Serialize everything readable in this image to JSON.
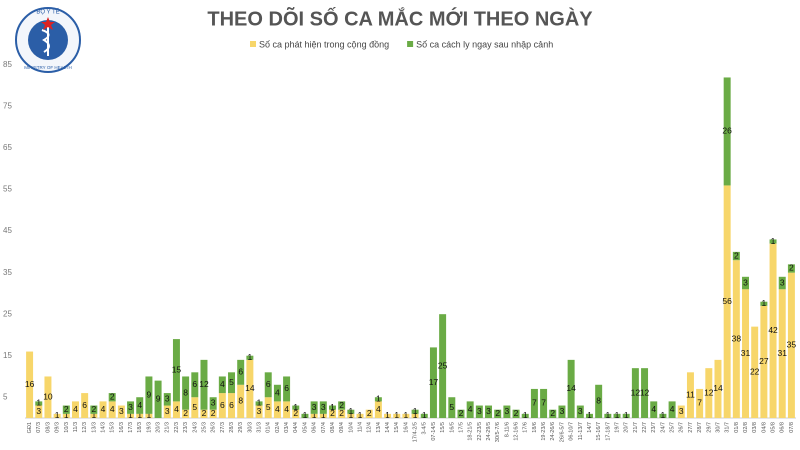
{
  "logo": {
    "top": "BỘ Y TẾ",
    "bottom": "MINISTRY OF HEALTH"
  },
  "chart_data": {
    "type": "stacked_bar",
    "title": "THEO DÕI SỐ CA MẮC MỚI THEO NGÀY",
    "categories": [
      "GĐ1",
      "07/3",
      "08/3",
      "09/3",
      "10/3",
      "11/3",
      "12/3",
      "13/3",
      "14/3",
      "15/3",
      "16/3",
      "17/3",
      "18/3",
      "19/3",
      "20/3",
      "21/3",
      "22/3",
      "23/3",
      "24/3",
      "25/3",
      "26/3",
      "27/3",
      "28/3",
      "29/3",
      "30/3",
      "31/3",
      "01/4",
      "02/4",
      "03/4",
      "04/4",
      "05/4",
      "06/4",
      "07/4",
      "08/4",
      "09/4",
      "10/4",
      "11/4",
      "12/4",
      "13/4",
      "14/4",
      "15/4",
      "16/4",
      "17/4-2/5",
      "3-4/5",
      "07-14/5",
      "15/5",
      "16/5",
      "17/5",
      "18-21/5",
      "22-23/5",
      "24-29/5",
      "30/5-7/6",
      "8-11/6",
      "12-16/6",
      "17/6",
      "18/6",
      "19-23/6",
      "24-26/6",
      "26/6-5/7",
      "06-10/7",
      "11-13/7",
      "14/7",
      "15-16/7",
      "17-18/7",
      "19/7",
      "20/7",
      "21/7",
      "22/7",
      "23/7",
      "24/7",
      "25/7",
      "26/7",
      "27/7",
      "28/7",
      "29/7",
      "30/7",
      "31/7",
      "01/8",
      "02/8",
      "03/8",
      "04/8",
      "05/8",
      "06/8",
      "07/8"
    ],
    "series": [
      {
        "name": "Số ca phát hiện trong cộng đồng",
        "color": "#f7d66a",
        "values": [
          16,
          3,
          10,
          1,
          1,
          4,
          6,
          1,
          4,
          4,
          3,
          1,
          1,
          1,
          0,
          3,
          4,
          2,
          5,
          2,
          2,
          6,
          6,
          8,
          14,
          3,
          5,
          4,
          4,
          2,
          0,
          1,
          1,
          2,
          2,
          1,
          1,
          2,
          4,
          1,
          1,
          1,
          1,
          0,
          0,
          0,
          0,
          0,
          0,
          0,
          0,
          0,
          0,
          0,
          0,
          0,
          0,
          0,
          0,
          0,
          0,
          0,
          0,
          0,
          0,
          0,
          0,
          0,
          0,
          0,
          0,
          3,
          11,
          7,
          12,
          14,
          56,
          38,
          31,
          22,
          27,
          42,
          31,
          35
        ]
      },
      {
        "name": "Số ca cách ly ngay sau nhập cảnh",
        "color": "#6aab45",
        "values": [
          0,
          1,
          0,
          0,
          2,
          0,
          0,
          2,
          0,
          2,
          0,
          3,
          4,
          9,
          9,
          3,
          15,
          8,
          6,
          12,
          3,
          4,
          5,
          6,
          1,
          1,
          6,
          4,
          6,
          1,
          1,
          3,
          3,
          1,
          2,
          1,
          0,
          0,
          1,
          0,
          0,
          0,
          1,
          1,
          17,
          25,
          5,
          2,
          4,
          3,
          3,
          2,
          3,
          2,
          1,
          7,
          7,
          2,
          3,
          14,
          3,
          1,
          8,
          1,
          1,
          1,
          12,
          12,
          4,
          1,
          4,
          0,
          0,
          0,
          0,
          0,
          26,
          2,
          3,
          0,
          1,
          1,
          3,
          2
        ]
      }
    ],
    "ylim": [
      0,
      85
    ],
    "yticks": [
      5,
      15,
      25,
      35,
      45,
      55,
      65,
      75,
      85
    ]
  }
}
